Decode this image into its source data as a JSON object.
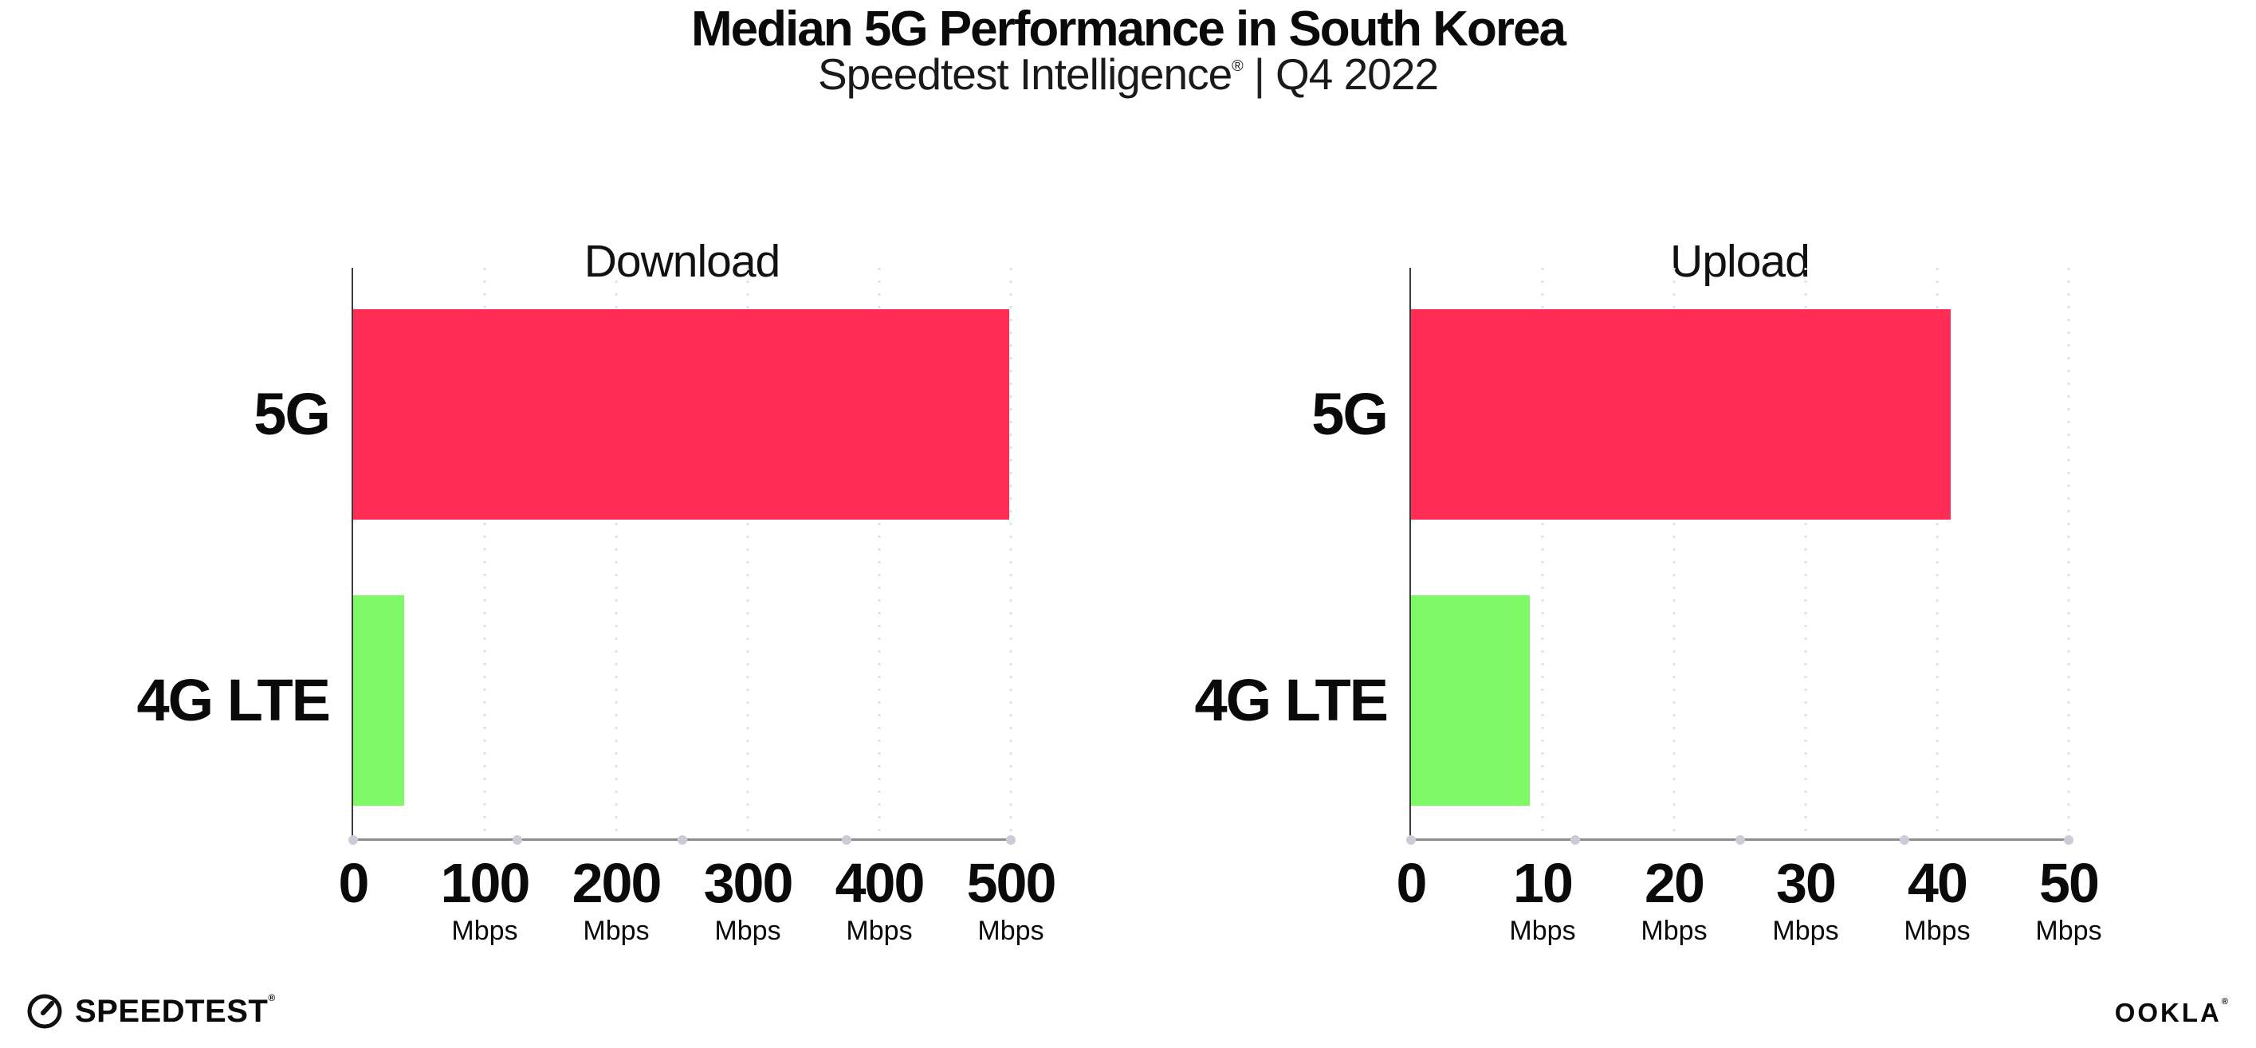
{
  "header": {
    "title": "Median 5G Performance in South Korea",
    "subtitle": {
      "brand": "Speedtest Intelligence",
      "mark": "®",
      "divider": "|",
      "period": "Q4 2022"
    }
  },
  "chart_data": [
    {
      "type": "bar",
      "orientation": "horizontal",
      "title": "Download",
      "categories": [
        "5G",
        "4G LTE"
      ],
      "values": [
        499,
        39
      ],
      "unit": "Mbps",
      "xlim": [
        0,
        500
      ],
      "xticks": [
        0,
        100,
        200,
        300,
        400,
        500
      ],
      "xtick_unit_label": "Mbps",
      "bar_colors": [
        "#FF2D55",
        "#7DF965"
      ],
      "grid": "dotted-vertical",
      "legend": "none"
    },
    {
      "type": "bar",
      "orientation": "horizontal",
      "title": "Upload",
      "categories": [
        "5G",
        "4G LTE"
      ],
      "values": [
        41,
        9
      ],
      "unit": "Mbps",
      "xlim": [
        0,
        50
      ],
      "xticks": [
        0,
        10,
        20,
        30,
        40,
        50
      ],
      "xtick_unit_label": "Mbps",
      "bar_colors": [
        "#FF2D55",
        "#7DF965"
      ],
      "grid": "dotted-vertical",
      "legend": "none"
    }
  ],
  "panels": [
    {
      "title": "Download",
      "categories": [
        "5G",
        "4G LTE"
      ],
      "ticks": [
        {
          "n": "0",
          "u": ""
        },
        {
          "n": "100",
          "u": "Mbps"
        },
        {
          "n": "200",
          "u": "Mbps"
        },
        {
          "n": "300",
          "u": "Mbps"
        },
        {
          "n": "400",
          "u": "Mbps"
        },
        {
          "n": "500",
          "u": "Mbps"
        }
      ]
    },
    {
      "title": "Upload",
      "categories": [
        "5G",
        "4G LTE"
      ],
      "ticks": [
        {
          "n": "0",
          "u": ""
        },
        {
          "n": "10",
          "u": "Mbps"
        },
        {
          "n": "20",
          "u": "Mbps"
        },
        {
          "n": "30",
          "u": "Mbps"
        },
        {
          "n": "40",
          "u": "Mbps"
        },
        {
          "n": "50",
          "u": "Mbps"
        }
      ]
    }
  ],
  "footer": {
    "speedtest_label": "SPEEDTEST",
    "speedtest_mark": "®",
    "ookla_label": "OOKLA",
    "ookla_mark": "®"
  },
  "colors": {
    "bar_5g": "#FF2D55",
    "bar_4g_lte": "#7DF965",
    "axis_line": "#8d8d8d",
    "y_axis_line": "#3c3c3c",
    "gridline": "#e2e2ea",
    "text": "#0a0a0a"
  }
}
